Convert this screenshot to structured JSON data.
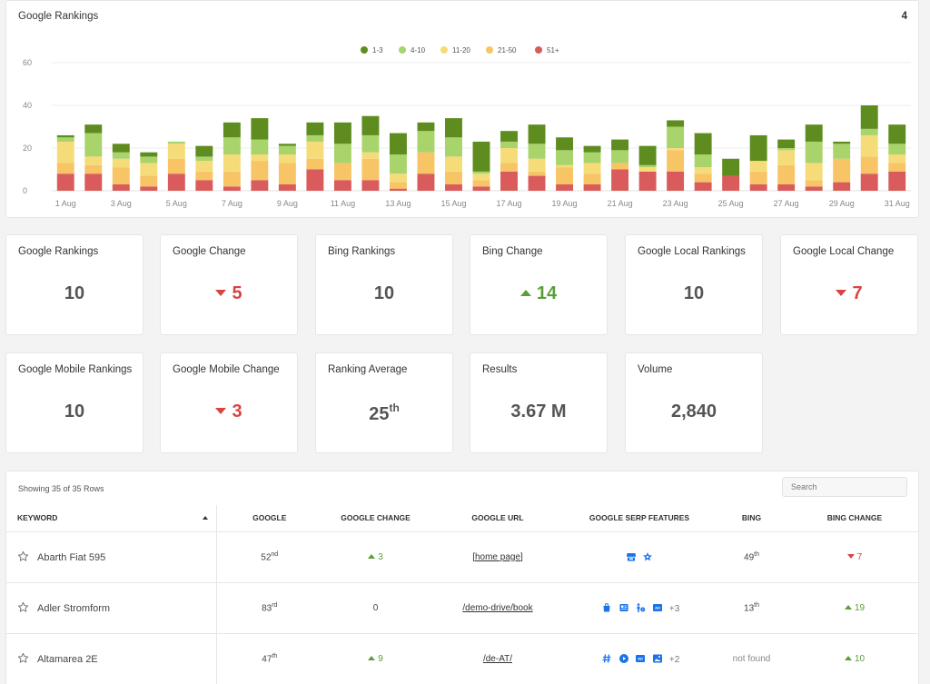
{
  "chart_card": {
    "title": "Google Rankings",
    "count": "4"
  },
  "chart_data": {
    "type": "bar",
    "stacked": true,
    "legend": [
      "1-3",
      "4-10",
      "11-20",
      "21-50",
      "51+"
    ],
    "legend_position": "top-center",
    "colors": [
      "#5e8c1f",
      "#a9d36b",
      "#f6dc78",
      "#f7c466",
      "#d95b5b"
    ],
    "ylim": [
      0,
      60
    ],
    "yticks": [
      0,
      20,
      40,
      60
    ],
    "grid": true,
    "categories": [
      "1 Aug",
      "2 Aug",
      "3 Aug",
      "4 Aug",
      "5 Aug",
      "6 Aug",
      "7 Aug",
      "8 Aug",
      "9 Aug",
      "10 Aug",
      "11 Aug",
      "12 Aug",
      "13 Aug",
      "14 Aug",
      "15 Aug",
      "16 Aug",
      "17 Aug",
      "18 Aug",
      "19 Aug",
      "20 Aug",
      "21 Aug",
      "22 Aug",
      "23 Aug",
      "24 Aug",
      "25 Aug",
      "26 Aug",
      "27 Aug",
      "28 Aug",
      "29 Aug",
      "30 Aug",
      "31 Aug"
    ],
    "xtick_labels": [
      "1 Aug",
      "3 Aug",
      "5 Aug",
      "7 Aug",
      "9 Aug",
      "11 Aug",
      "13 Aug",
      "15 Aug",
      "17 Aug",
      "19 Aug",
      "21 Aug",
      "23 Aug",
      "25 Aug",
      "27 Aug",
      "29 Aug",
      "31 Aug"
    ],
    "series": [
      {
        "name": "51+",
        "values": [
          8,
          8,
          3,
          2,
          8,
          5,
          2,
          5,
          3,
          10,
          5,
          5,
          1,
          8,
          3,
          2,
          9,
          7,
          3,
          3,
          10,
          9,
          9,
          4,
          7,
          3,
          3,
          2,
          4,
          8,
          9
        ]
      },
      {
        "name": "21-50",
        "values": [
          5,
          4,
          8,
          5,
          7,
          4,
          7,
          9,
          10,
          5,
          8,
          10,
          3,
          10,
          6,
          3,
          4,
          2,
          8,
          5,
          3,
          0,
          10,
          4,
          0,
          6,
          9,
          3,
          11,
          8,
          4
        ]
      },
      {
        "name": "11-20",
        "values": [
          10,
          4,
          4,
          6,
          7,
          5,
          8,
          3,
          4,
          8,
          0,
          3,
          4,
          0,
          7,
          3,
          7,
          6,
          1,
          5,
          0,
          2,
          1,
          3,
          0,
          5,
          7,
          8,
          0,
          10,
          4
        ]
      },
      {
        "name": "4-10",
        "values": [
          2,
          11,
          3,
          3,
          1,
          2,
          8,
          7,
          4,
          3,
          9,
          8,
          9,
          10,
          9,
          1,
          3,
          7,
          7,
          5,
          6,
          1,
          10,
          6,
          0,
          0,
          1,
          10,
          7,
          3,
          5
        ]
      },
      {
        "name": "1-3",
        "values": [
          1,
          4,
          4,
          2,
          0,
          5,
          7,
          10,
          1,
          6,
          10,
          9,
          10,
          4,
          9,
          14,
          5,
          9,
          6,
          3,
          5,
          9,
          3,
          10,
          8,
          12,
          4,
          8,
          1,
          11,
          9
        ]
      }
    ]
  },
  "kpis_row1": [
    {
      "label": "Google Rankings",
      "value": "10",
      "trend": "none"
    },
    {
      "label": "Google Change",
      "value": "5",
      "trend": "down"
    },
    {
      "label": "Bing Rankings",
      "value": "10",
      "trend": "none"
    },
    {
      "label": "Bing Change",
      "value": "14",
      "trend": "up"
    },
    {
      "label": "Google Local Rankings",
      "value": "10",
      "trend": "none"
    },
    {
      "label": "Google Local Change",
      "value": "7",
      "trend": "down"
    }
  ],
  "kpis_row2": [
    {
      "label": "Google Mobile Rankings",
      "value": "10",
      "trend": "none"
    },
    {
      "label": "Google Mobile Change",
      "value": "3",
      "trend": "down"
    },
    {
      "label": "Ranking Average",
      "value": "25",
      "suffix": "th",
      "trend": "none"
    },
    {
      "label": "Results",
      "value": "3.67 M",
      "trend": "none"
    },
    {
      "label": "Volume",
      "value": "2,840",
      "trend": "none"
    }
  ],
  "table": {
    "showing": "Showing 35 of 35 Rows",
    "search_placeholder": "Search",
    "headers": {
      "keyword": "KEYWORD",
      "google": "GOOGLE",
      "google_change": "GOOGLE CHANGE",
      "google_url": "GOOGLE URL",
      "serp": "GOOGLE SERP FEATURES",
      "bing": "BING",
      "bing_change": "BING CHANGE"
    },
    "rows": [
      {
        "keyword": "Abarth Fiat 595",
        "google": "52",
        "google_suffix": "nd",
        "google_change": "3",
        "google_change_dir": "up",
        "url": "[home page]",
        "serp_icons": [
          "store-icon",
          "star-badge-icon"
        ],
        "serp_more": "",
        "bing": "49",
        "bing_suffix": "th",
        "bing_change": "7",
        "bing_change_dir": "down"
      },
      {
        "keyword": "Adler Stromform",
        "google": "83",
        "google_suffix": "rd",
        "google_change": "0",
        "google_change_dir": "none",
        "url": "/demo-drive/book",
        "serp_icons": [
          "shopping-bag-icon",
          "news-icon",
          "people-also-ask-icon",
          "ads-icon"
        ],
        "serp_more": "+3",
        "bing": "13",
        "bing_suffix": "th",
        "bing_change": "19",
        "bing_change_dir": "up"
      },
      {
        "keyword": "Altamarea 2E",
        "google": "47",
        "google_suffix": "th",
        "google_change": "9",
        "google_change_dir": "up",
        "url": "/de-AT/",
        "serp_icons": [
          "hashtag-icon",
          "video-icon",
          "ads-icon",
          "image-icon"
        ],
        "serp_more": "+2",
        "bing": "not found",
        "bing_suffix": "",
        "bing_change": "10",
        "bing_change_dir": "up"
      }
    ]
  }
}
